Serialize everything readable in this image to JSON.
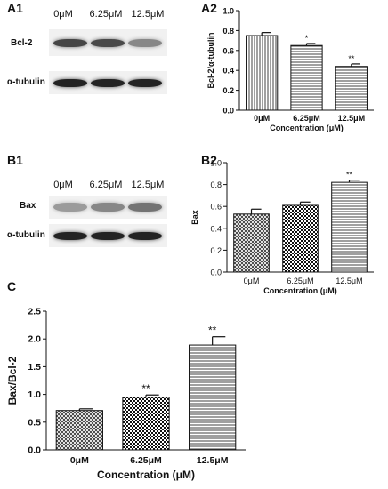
{
  "panels": {
    "a1": "A1",
    "a2": "A2",
    "b1": "B1",
    "b2": "B2",
    "c": "C"
  },
  "blots": {
    "a": {
      "lanes": [
        "0μM",
        "6.25μM",
        "12.5μM"
      ],
      "rows": [
        {
          "label": "Bcl-2",
          "intensity": [
            0.78,
            0.76,
            0.45
          ]
        },
        {
          "label": "α-tubulin",
          "intensity": [
            0.95,
            0.95,
            0.95
          ]
        }
      ]
    },
    "b": {
      "lanes": [
        "0μM",
        "6.25μM",
        "12.5μM"
      ],
      "rows": [
        {
          "label": "Bax",
          "intensity": [
            0.35,
            0.45,
            0.55
          ]
        },
        {
          "label": "α-tubulin",
          "intensity": [
            0.95,
            0.95,
            0.95
          ]
        }
      ]
    }
  },
  "colors": {
    "bar_stroke": "#111111",
    "pattern_fill": "#111111",
    "background": "#ffffff"
  },
  "chart_data": [
    {
      "id": "a2",
      "type": "bar",
      "categories": [
        "0μM",
        "6.25μM",
        "12.5μM"
      ],
      "values": [
        0.75,
        0.65,
        0.44
      ],
      "errors": [
        0.03,
        0.02,
        0.025
      ],
      "significance": [
        "",
        "*",
        "**"
      ],
      "patterns": [
        "vlines",
        "hlines",
        "hlines"
      ],
      "xlabel": "Concentration (μM)",
      "ylabel": "Bcl-2/α-tubulin",
      "ylim": [
        0,
        1.0
      ],
      "yticks": [
        0,
        0.2,
        0.4,
        0.6,
        0.8,
        1.0
      ],
      "ytick_labels": [
        "0.0",
        "0.2",
        "0.4",
        "0.6",
        "0.8",
        "1.0"
      ],
      "grid": false
    },
    {
      "id": "b2",
      "type": "bar",
      "categories": [
        "0μM",
        "6.25μM",
        "12.5μM"
      ],
      "values": [
        0.53,
        0.61,
        0.82
      ],
      "errors": [
        0.045,
        0.03,
        0.02
      ],
      "significance": [
        "",
        "",
        "**"
      ],
      "patterns": [
        "cross",
        "checker",
        "hlines"
      ],
      "xlabel": "Concentration (μM)",
      "ylabel": "Bax",
      "ylim": [
        0,
        1.0
      ],
      "yticks": [
        0,
        0.2,
        0.4,
        0.6,
        0.8,
        1.0
      ],
      "ytick_labels": [
        "0.0",
        "0.2",
        "0.4",
        "0.6",
        "0.8",
        "1.0"
      ],
      "grid": false
    },
    {
      "id": "c",
      "type": "bar",
      "categories": [
        "0μM",
        "6.25μM",
        "12.5μM"
      ],
      "values": [
        0.71,
        0.95,
        1.89
      ],
      "errors": [
        0.03,
        0.04,
        0.15
      ],
      "significance": [
        "",
        "**",
        "**"
      ],
      "patterns": [
        "cross",
        "checker",
        "hlines"
      ],
      "xlabel": "Concentration (μM)",
      "ylabel": "Bax/Bcl-2",
      "ylim": [
        0,
        2.5
      ],
      "yticks": [
        0,
        0.5,
        1.0,
        1.5,
        2.0,
        2.5
      ],
      "ytick_labels": [
        "0.0",
        "0.5",
        "1.0",
        "1.5",
        "2.0",
        "2.5"
      ],
      "grid": false
    }
  ]
}
